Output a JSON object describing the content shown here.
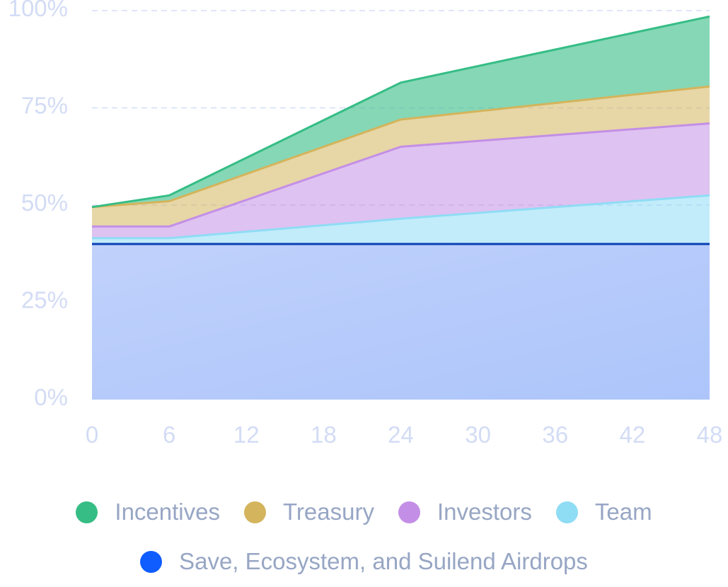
{
  "chart_data": {
    "type": "area",
    "stacked": true,
    "x": [
      0,
      6,
      24,
      48
    ],
    "x_ticks": [
      "0",
      "6",
      "12",
      "18",
      "24",
      "30",
      "36",
      "42",
      "48"
    ],
    "y_ticks": [
      "0%",
      "25%",
      "50%",
      "75%",
      "100%"
    ],
    "ylim": [
      0,
      100
    ],
    "xlim": [
      0,
      48
    ],
    "grid": true,
    "legend_position": "bottom",
    "series": [
      {
        "name": "Save, Ecosystem, and Suilend Airdrops",
        "color": "#0f5cff",
        "values": [
          40,
          40,
          40,
          40
        ]
      },
      {
        "name": "Team",
        "color": "#8fdcf5",
        "values": [
          41.5,
          41.5,
          46.5,
          52.5
        ]
      },
      {
        "name": "Investors",
        "color": "#c38fe6",
        "values": [
          44.5,
          44.5,
          65,
          71
        ]
      },
      {
        "name": "Treasury",
        "color": "#d4b45c",
        "values": [
          49.5,
          51,
          72,
          80.5
        ]
      },
      {
        "name": "Incentives",
        "color": "#35bd85",
        "values": [
          49.5,
          52.5,
          81.5,
          98.5
        ]
      }
    ]
  },
  "legend": {
    "row1": [
      {
        "label": "Incentives",
        "color": "#35bd85"
      },
      {
        "label": "Treasury",
        "color": "#d4b45c"
      },
      {
        "label": "Investors",
        "color": "#c38fe6"
      },
      {
        "label": "Team",
        "color": "#8fdcf5"
      }
    ],
    "row2": [
      {
        "label": "Save, Ecosystem, and Suilend Airdrops",
        "color": "#0f5cff"
      }
    ]
  }
}
